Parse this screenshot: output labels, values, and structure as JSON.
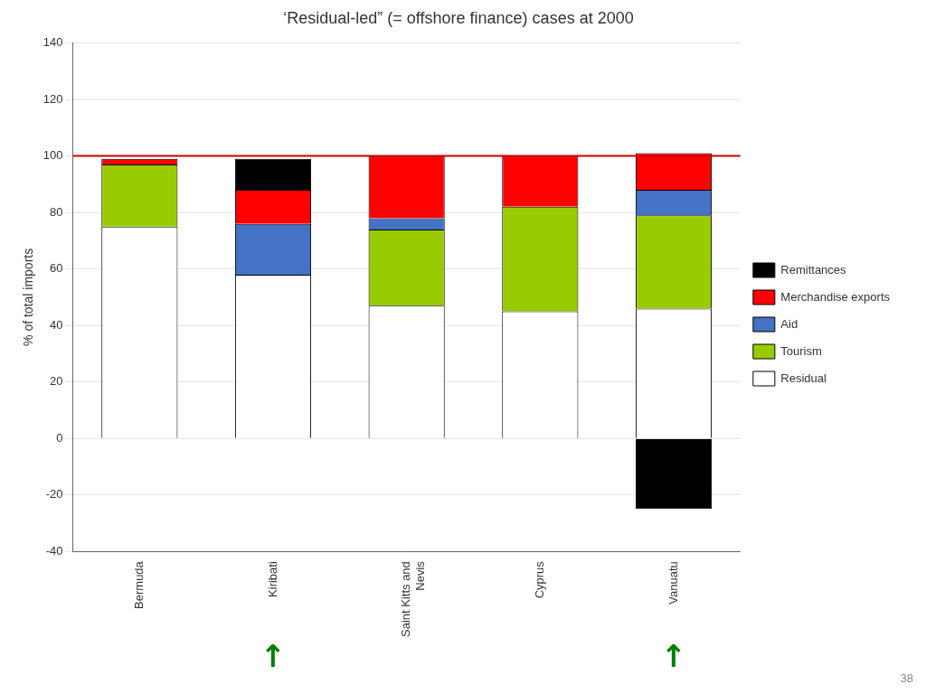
{
  "chart_data": {
    "type": "bar",
    "title": "‘Residual-led” (= offshore finance) cases at 2000",
    "ylabel": "% of total imports",
    "categories": [
      "Bermuda",
      "Kiribati",
      "Saint Kitts and\nNevis",
      "Cyprus",
      "Vanuatu"
    ],
    "series": [
      {
        "name": "Residual",
        "color": "#ffffff",
        "values": [
          75,
          58,
          47,
          45,
          46
        ]
      },
      {
        "name": "Tourism",
        "color": "#99cc00",
        "values": [
          22,
          0,
          27,
          37,
          33
        ]
      },
      {
        "name": "Aid",
        "color": "#4472c4",
        "values": [
          0,
          18,
          4,
          0,
          9
        ]
      },
      {
        "name": "Merchandise exports",
        "color": "#ff0000",
        "values": [
          2,
          12,
          22,
          18,
          13
        ]
      },
      {
        "name": "Remittances",
        "color": "#000000",
        "values": [
          0,
          11,
          0,
          0,
          -25
        ]
      }
    ],
    "stacked": true,
    "ylim": [
      -40,
      140
    ],
    "yticks": [
      -40,
      -20,
      0,
      20,
      40,
      60,
      80,
      100,
      120,
      140
    ],
    "grid": true,
    "legend": "right",
    "hline": {
      "value": 100,
      "color": "#cc0000"
    },
    "annotations": [
      {
        "text": "↑",
        "category": "Kiribati",
        "color": "#008000"
      },
      {
        "text": "↑",
        "category": "Vanuatu",
        "color": "#008000"
      }
    ],
    "page_number": "38"
  }
}
